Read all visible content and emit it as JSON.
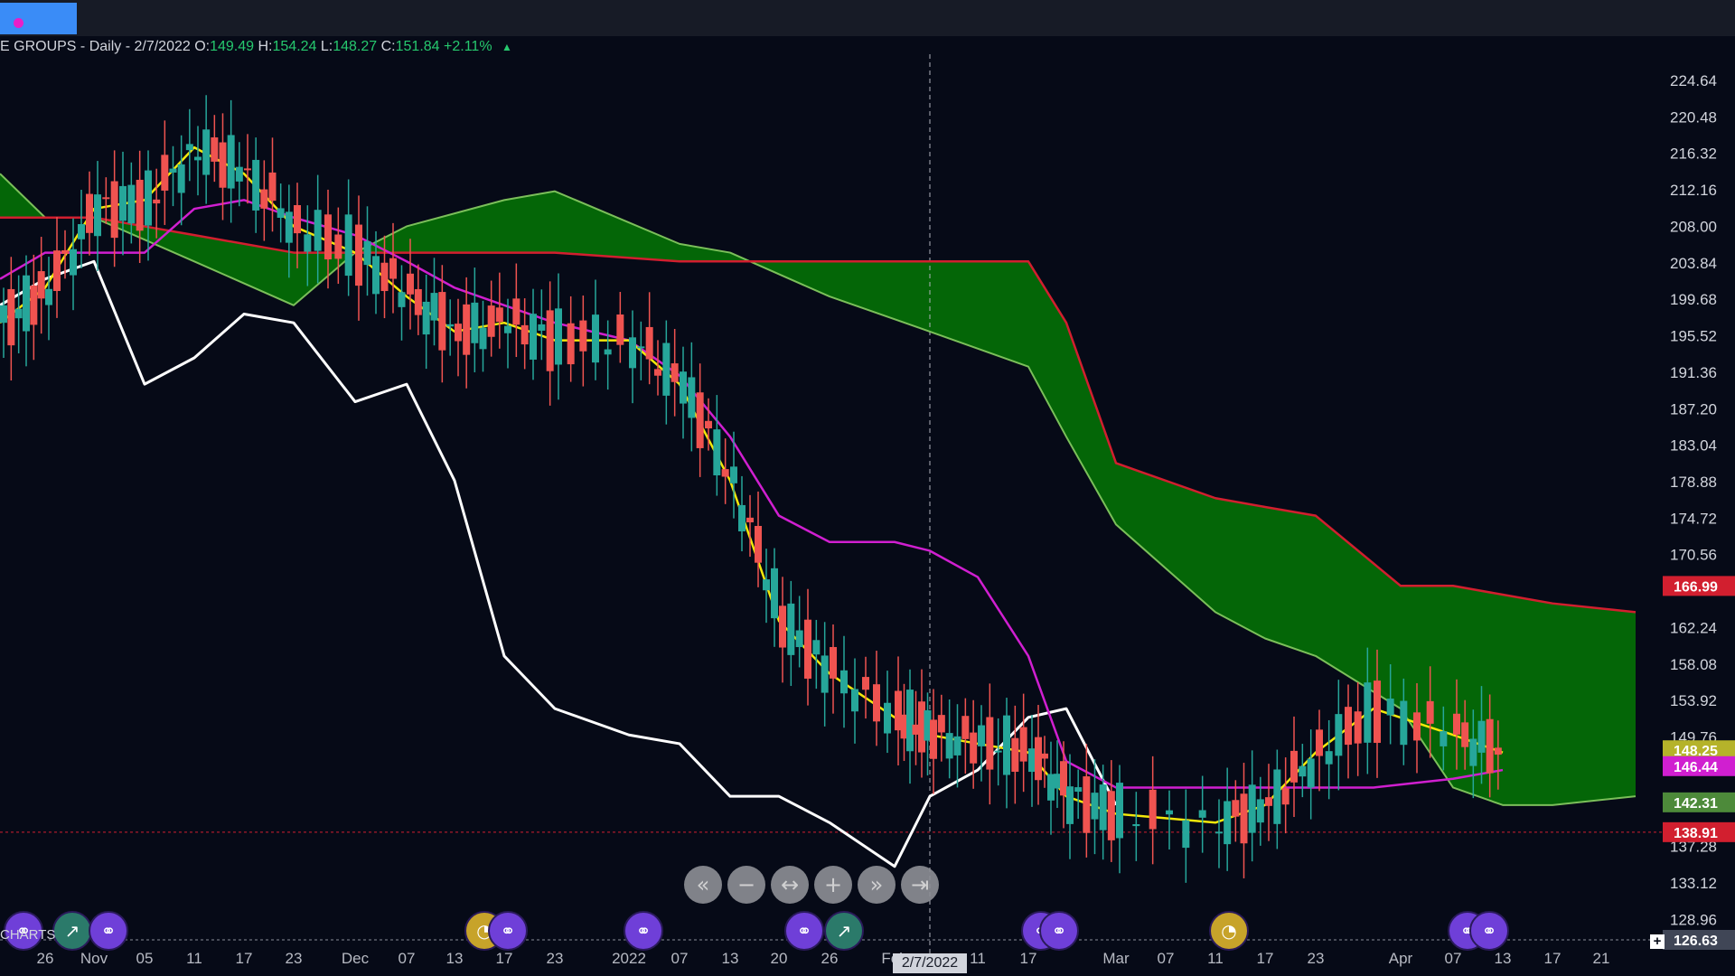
{
  "window": {
    "tab_color": "#3a8cf7",
    "tab_dot_color": "#e91ec8"
  },
  "legend": {
    "symbol": "E GROUPS",
    "interval": "- Daily - 2/7/2022",
    "open_label": "O:",
    "open": "149.49",
    "high_label": "H:",
    "high": "154.24",
    "low_label": "L:",
    "low": "148.27",
    "close_label": "C:",
    "close": "151.84",
    "change": "+2.11%",
    "up_color": "#26c86e"
  },
  "crosshair_date": "2/7/2022",
  "charts_label": "CHARTS",
  "nav_buttons": [
    {
      "name": "scroll-back-button",
      "icon": "«"
    },
    {
      "name": "zoom-out-button",
      "icon": "−"
    },
    {
      "name": "reset-button",
      "icon": "↔"
    },
    {
      "name": "zoom-in-button",
      "icon": "+"
    },
    {
      "name": "scroll-forward-button",
      "icon": "»"
    },
    {
      "name": "go-to-latest-button",
      "icon": "⇥"
    }
  ],
  "events": [
    {
      "type": "dividend",
      "color": "purple",
      "x_label": "Oct"
    },
    {
      "type": "split",
      "color": "green",
      "x_label": "Nov"
    },
    {
      "type": "dividend",
      "color": "purple",
      "x_label": "Nov"
    },
    {
      "type": "earnings",
      "color": "gold",
      "x_label": "Dec 17"
    },
    {
      "type": "dividend",
      "color": "purple",
      "x_label": "Dec 17"
    },
    {
      "type": "dividend",
      "color": "purple",
      "x_label": "Jan 07"
    },
    {
      "type": "dividend",
      "color": "purple",
      "x_label": "Jan 26"
    },
    {
      "type": "split",
      "color": "green",
      "x_label": "Jan 26"
    },
    {
      "type": "dividend",
      "color": "purple",
      "x_label": "Feb 17"
    },
    {
      "type": "dividend",
      "color": "purple",
      "x_label": "Feb 17"
    },
    {
      "type": "earnings",
      "color": "gold",
      "x_label": "Mar 11"
    },
    {
      "type": "dividend",
      "color": "purple",
      "x_label": "Apr 13"
    },
    {
      "type": "dividend",
      "color": "purple",
      "x_label": "Apr 13"
    }
  ],
  "chart_data": {
    "type": "candlestick",
    "title": "",
    "y_ticks": [
      "224.64",
      "220.48",
      "216.32",
      "212.16",
      "208.00",
      "203.84",
      "199.68",
      "195.52",
      "191.36",
      "187.20",
      "183.04",
      "178.88",
      "174.72",
      "170.56",
      "162.24",
      "158.08",
      "153.92",
      "149.76",
      "137.28",
      "133.12",
      "128.96",
      "126.63"
    ],
    "ylim": [
      126.63,
      224.64
    ],
    "price_labels": [
      {
        "value": 166.99,
        "text": "166.99",
        "color": "#d21f2f"
      },
      {
        "value": 148.25,
        "text": "148.25",
        "color": "#b5b32a"
      },
      {
        "value": 146.44,
        "text": "146.44",
        "color": "#d01fd0"
      },
      {
        "value": 142.31,
        "text": "142.31",
        "color": "#4d8a3a"
      },
      {
        "value": 138.91,
        "text": "138.91",
        "color": "#d21f2f"
      },
      {
        "value": 126.63,
        "text": "126.63",
        "color": "#404656"
      }
    ],
    "x_ticks": [
      "26",
      "Nov",
      "05",
      "11",
      "17",
      "23",
      "Dec",
      "07",
      "13",
      "17",
      "23",
      "2022",
      "07",
      "13",
      "20",
      "26",
      "Feb",
      "11",
      "17",
      "Mar",
      "07",
      "11",
      "17",
      "23",
      "Apr",
      "07",
      "13",
      "17",
      "21"
    ],
    "colors": {
      "up_candle": "#26a69a",
      "down_candle": "#ef5350",
      "tenkan": "#f4e80a",
      "kijun": "#d01fd0",
      "chikou": "#ffffff",
      "senkou_a": "#7bbf5a",
      "senkou_b": "#d21f2f",
      "cloud": "#046b06"
    },
    "series": [
      {
        "name": "tenkan",
        "x": [
          "Oct 22",
          "Oct 26",
          "Nov 01",
          "Nov 05",
          "Nov 11",
          "Nov 17",
          "Nov 23",
          "Dec 01",
          "Dec 07",
          "Dec 13",
          "Dec 17",
          "Dec 23",
          "Dec 30",
          "Jan 07",
          "Jan 13",
          "Jan 20",
          "Jan 26",
          "Feb 01",
          "Feb 07",
          "Feb 11",
          "Feb 17",
          "Feb 24",
          "Mar 03",
          "Mar 11",
          "Mar 17",
          "Mar 23",
          "Mar 30",
          "Apr 07",
          "Apr 13"
        ],
        "values": [
          197,
          201,
          210,
          211,
          217,
          214,
          208,
          205,
          200,
          196,
          197,
          195,
          195,
          190,
          179,
          163,
          157,
          152,
          150,
          149,
          148,
          143,
          141,
          140,
          142,
          148,
          153,
          150,
          148
        ]
      },
      {
        "name": "kijun",
        "x": [
          "Oct 22",
          "Oct 26",
          "Nov 01",
          "Nov 05",
          "Nov 11",
          "Nov 17",
          "Nov 23",
          "Dec 01",
          "Dec 07",
          "Dec 13",
          "Dec 17",
          "Dec 23",
          "Dec 30",
          "Jan 07",
          "Jan 13",
          "Jan 20",
          "Jan 26",
          "Feb 01",
          "Feb 07",
          "Feb 11",
          "Feb 17",
          "Feb 24",
          "Mar 03",
          "Mar 11",
          "Mar 17",
          "Mar 23",
          "Mar 30",
          "Apr 07",
          "Apr 13"
        ],
        "values": [
          202,
          205,
          205,
          205,
          210,
          211,
          209,
          207,
          204,
          201,
          199,
          197,
          195,
          191,
          184,
          175,
          172,
          172,
          171,
          168,
          159,
          147,
          144,
          144,
          144,
          144,
          144,
          145,
          146
        ]
      },
      {
        "name": "chikou",
        "x": [
          "Oct 22",
          "Oct 26",
          "Nov 01",
          "Nov 05",
          "Nov 11",
          "Nov 17",
          "Nov 23",
          "Dec 01",
          "Dec 07",
          "Dec 13",
          "Dec 17",
          "Dec 23",
          "Dec 30",
          "Jan 07",
          "Jan 13",
          "Jan 20",
          "Jan 26",
          "Feb 01",
          "Feb 07",
          "Feb 11",
          "Feb 17",
          "Feb 24",
          "Mar 03"
        ],
        "values": [
          199,
          202,
          204,
          190,
          193,
          198,
          197,
          188,
          190,
          179,
          159,
          153,
          150,
          149,
          143,
          143,
          140,
          135,
          143,
          146,
          152,
          153,
          142
        ]
      },
      {
        "name": "senkou_a",
        "x": [
          "Oct 22",
          "Oct 26",
          "Nov 01",
          "Nov 11",
          "Nov 23",
          "Dec 01",
          "Dec 07",
          "Dec 17",
          "Dec 23",
          "Jan 07",
          "Jan 13",
          "Jan 26",
          "Feb 07",
          "Feb 17",
          "Feb 24",
          "Mar 03",
          "Mar 11",
          "Mar 17",
          "Mar 23",
          "Apr 01",
          "Apr 07",
          "Apr 13",
          "Apr 17",
          "Apr 21"
        ],
        "values": [
          214,
          209,
          209,
          204,
          199,
          205,
          208,
          211,
          212,
          206,
          205,
          200,
          196,
          192,
          184,
          174,
          164,
          161,
          159,
          153,
          144,
          142,
          142,
          143
        ]
      },
      {
        "name": "senkou_b",
        "x": [
          "Oct 22",
          "Oct 26",
          "Nov 01",
          "Nov 11",
          "Nov 23",
          "Dec 01",
          "Dec 07",
          "Dec 17",
          "Dec 23",
          "Jan 07",
          "Jan 13",
          "Jan 26",
          "Feb 07",
          "Feb 17",
          "Feb 24",
          "Mar 03",
          "Mar 11",
          "Mar 17",
          "Mar 23",
          "Apr 01",
          "Apr 07",
          "Apr 13",
          "Apr 17",
          "Apr 21"
        ],
        "values": [
          209,
          209,
          209,
          207,
          205,
          205,
          205,
          205,
          205,
          204,
          204,
          204,
          204,
          204,
          197,
          181,
          177,
          176,
          175,
          167,
          167,
          166,
          165,
          164
        ]
      }
    ]
  }
}
